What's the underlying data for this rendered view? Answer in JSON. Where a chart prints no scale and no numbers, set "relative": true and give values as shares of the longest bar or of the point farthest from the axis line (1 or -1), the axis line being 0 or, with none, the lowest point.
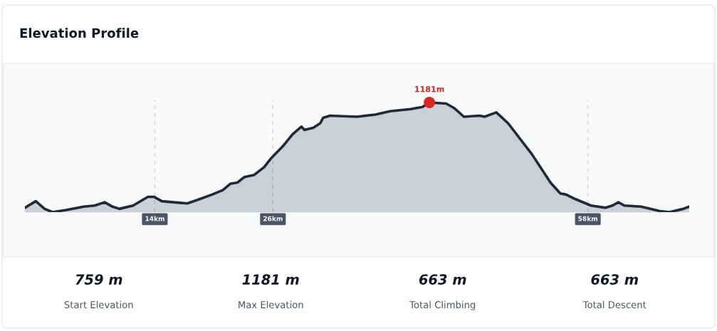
{
  "chart_data": [
    {
      "type": "area",
      "title": "Elevation Profile",
      "relative": true,
      "xlim": [
        0.8,
        68.3
      ],
      "x": [
        0.8,
        1.9,
        2.8,
        3.6,
        5.0,
        6.8,
        7.9,
        8.9,
        9.7,
        10.4,
        11.8,
        13.3,
        13.9,
        14.7,
        15.9,
        17.3,
        18.3,
        19.8,
        20.9,
        21.7,
        22.4,
        23.1,
        24.1,
        25.1,
        25.8,
        27.0,
        28.0,
        28.9,
        29.2,
        30.1,
        30.8,
        31.1,
        31.8,
        34.5,
        36.4,
        37.9,
        40.0,
        41.2,
        41.9,
        43.6,
        44.4,
        45.4,
        47.0,
        47.5,
        48.7,
        49.9,
        52.3,
        54.2,
        55.2,
        55.8,
        56.7,
        58.3,
        59.8,
        60.5,
        61.1,
        61.7,
        63.4,
        65.3,
        66.3,
        67.7,
        68.3
      ],
      "series": [
        {
          "color": "#1f2937",
          "values": [
            0.04,
            0.1,
            0.03,
            0.0,
            0.02,
            0.05,
            0.06,
            0.09,
            0.05,
            0.03,
            0.06,
            0.14,
            0.14,
            0.1,
            0.09,
            0.08,
            0.11,
            0.16,
            0.2,
            0.26,
            0.27,
            0.32,
            0.34,
            0.41,
            0.49,
            0.6,
            0.71,
            0.78,
            0.75,
            0.77,
            0.81,
            0.86,
            0.88,
            0.87,
            0.89,
            0.92,
            0.94,
            0.96,
            1.0,
            0.99,
            0.95,
            0.87,
            0.88,
            0.87,
            0.91,
            0.81,
            0.53,
            0.27,
            0.17,
            0.16,
            0.12,
            0.06,
            0.04,
            0.06,
            0.09,
            0.06,
            0.05,
            0.01,
            0.0,
            0.03,
            0.05
          ]
        }
      ],
      "xticks": [
        {
          "value": 14,
          "label": "14km"
        },
        {
          "value": 26,
          "label": "26km"
        },
        {
          "value": 58,
          "label": "58km"
        }
      ],
      "grid": "x",
      "annotations": [
        {
          "text": "1181m",
          "x": 41.9,
          "y": 1.0
        }
      ]
    },
    {
      "type": "other",
      "annotations": [
        "759 m",
        "Start Elevation",
        "1181 m",
        "Max Elevation",
        "663 m",
        "Total Climbing",
        "663 m",
        "Total Descent"
      ]
    }
  ]
}
